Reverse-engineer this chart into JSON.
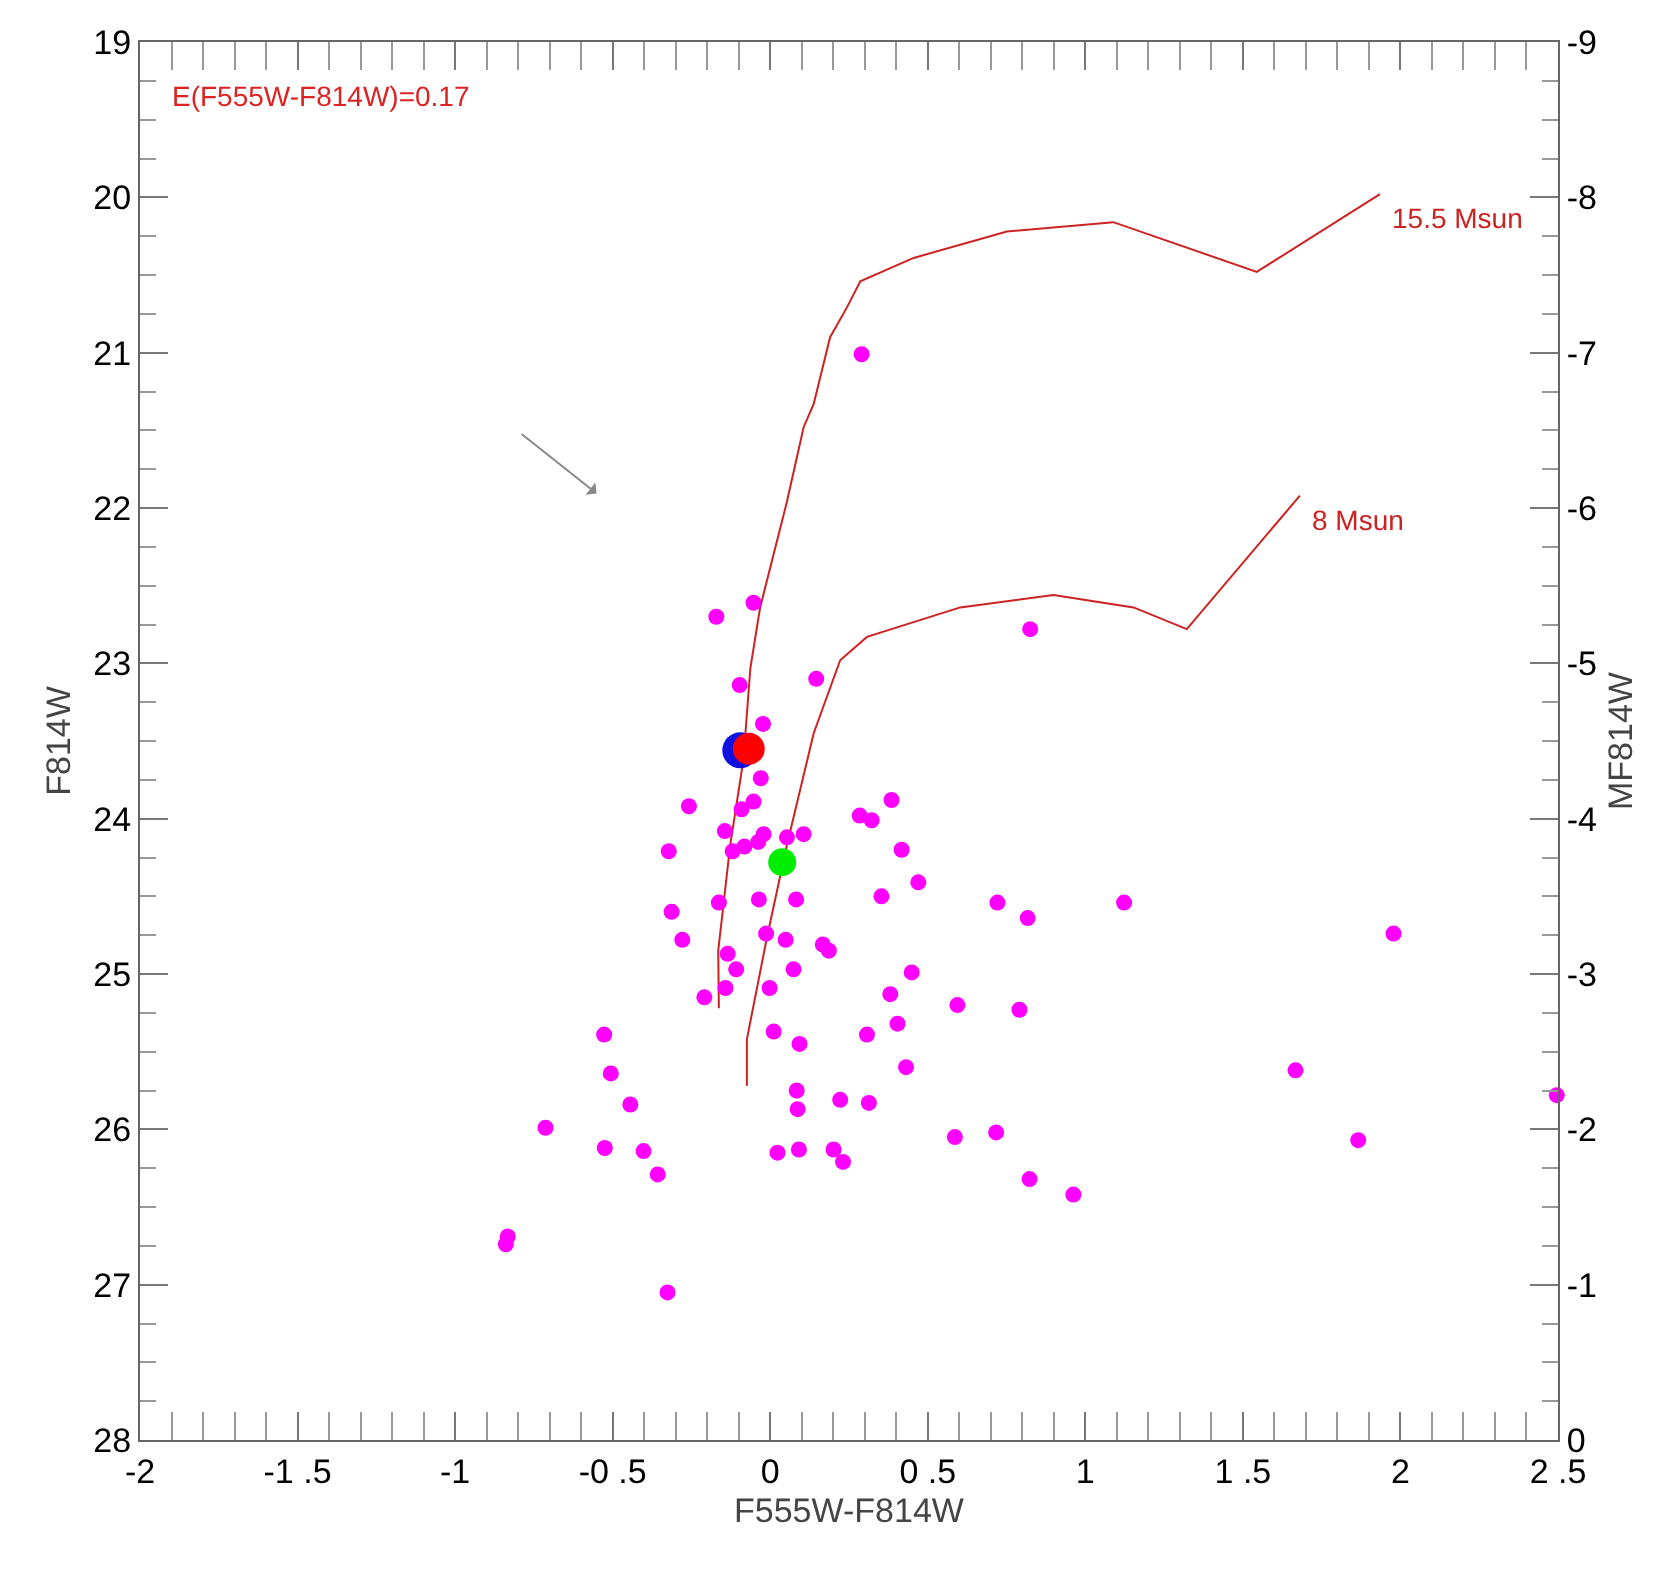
{
  "chart_data": {
    "type": "scatter",
    "xlabel": "F555W-F814W",
    "ylabel": "F814W",
    "y2label": "MF814W",
    "annotations": [
      "E(F555W-F814W)=0.17"
    ],
    "xlim": [
      -2,
      2.5
    ],
    "xticks": [
      -2,
      {
        "value": -1.5,
        "label": "-1 .5"
      },
      -1,
      {
        "value": -0.5,
        "label": "-0 .5"
      },
      0,
      {
        "value": 0.5,
        "label": "0 .5"
      },
      1,
      {
        "value": 1.5,
        "label": "1 .5"
      },
      2,
      {
        "value": 2.5,
        "label": "2 .5"
      }
    ],
    "ylim": [
      28,
      19
    ],
    "yticks": [
      19,
      20,
      21,
      22,
      23,
      24,
      25,
      26,
      27,
      28
    ],
    "y2lim": [
      0,
      -9
    ],
    "y2ticks": [
      -9,
      -8,
      -7,
      -6,
      -5,
      -4,
      -3,
      -2,
      -1,
      0
    ],
    "grid": false,
    "legend": false,
    "marker": "circle",
    "series": [
      {
        "color": "#ff00ff",
        "x": [
          -0.053,
          -0.171,
          -0.097,
          0.146,
          -0.023,
          -0.03,
          -0.258,
          -0.053,
          -0.091,
          0.385,
          0.284,
          0.322,
          -0.144,
          -0.021,
          -0.038,
          -0.082,
          -0.119,
          0.053,
          0.106,
          -0.322,
          0.417,
          0.47,
          0.353,
          -0.036,
          0.082,
          -0.163,
          -0.313,
          -0.013,
          -0.279,
          0.049,
          0.167,
          0.186,
          -0.135,
          -0.108,
          0.074,
          0.449,
          -0.002,
          -0.142,
          -0.209,
          0.381,
          0.594,
          0.404,
          0.011,
          0.307,
          0.093,
          -0.527,
          0.431,
          -0.506,
          0.084,
          0.222,
          0.313,
          -0.444,
          0.087,
          0.586,
          -0.713,
          -0.525,
          -0.402,
          0.023,
          0.091,
          0.201,
          0.231,
          -0.357,
          -0.833,
          -0.839,
          -0.326,
          0.721,
          0.817,
          1.123,
          1.978,
          0.791,
          1.667,
          2.496,
          0.717,
          1.866,
          0.823,
          0.962,
          0.29,
          0.825
        ],
        "values": [
          22.61,
          22.7,
          23.14,
          23.1,
          23.39,
          23.74,
          23.92,
          23.89,
          23.94,
          23.88,
          23.98,
          24.01,
          24.08,
          24.1,
          24.15,
          24.18,
          24.21,
          24.12,
          24.1,
          24.21,
          24.2,
          24.41,
          24.5,
          24.52,
          24.52,
          24.54,
          24.6,
          24.74,
          24.78,
          24.78,
          24.81,
          24.85,
          24.87,
          24.97,
          24.97,
          24.99,
          25.09,
          25.09,
          25.15,
          25.13,
          25.2,
          25.32,
          25.37,
          25.39,
          25.45,
          25.39,
          25.6,
          25.64,
          25.75,
          25.81,
          25.83,
          25.84,
          25.87,
          26.05,
          25.99,
          26.12,
          26.14,
          26.15,
          26.13,
          26.13,
          26.21,
          26.29,
          26.69,
          26.74,
          27.05,
          24.54,
          24.64,
          24.54,
          24.74,
          25.23,
          25.62,
          25.78,
          26.02,
          26.07,
          26.32,
          26.42,
          21.01,
          22.78
        ]
      },
      {
        "color": "#1010e0",
        "x": [
          -0.095
        ],
        "values": [
          23.56
        ]
      },
      {
        "color": "#ff0000",
        "x": [
          -0.068
        ],
        "values": [
          23.55
        ]
      },
      {
        "color": "#00ee00",
        "x": [
          0.038
        ],
        "values": [
          24.28
        ]
      },
      {
        "type": "line",
        "name": "15.5 Msun",
        "color": "#cc2222",
        "marker": "none",
        "line_style": "solid",
        "x": [
          -0.163,
          -0.165,
          -0.127,
          -0.085,
          -0.063,
          -0.032,
          0.053,
          0.106,
          0.138,
          0.19,
          0.243,
          0.286,
          0.455,
          0.751,
          1.089,
          1.544,
          1.935
        ],
        "values": [
          25.22,
          24.85,
          24.17,
          23.62,
          23.03,
          22.64,
          21.96,
          21.48,
          21.33,
          20.9,
          20.71,
          20.54,
          20.39,
          20.22,
          20.16,
          20.48,
          19.98
        ]
      },
      {
        "type": "line",
        "name": "8 Msun",
        "color": "#cc2222",
        "marker": "none",
        "line_style": "solid",
        "x": [
          -0.074,
          -0.074,
          -0.011,
          0.053,
          0.138,
          0.222,
          0.307,
          0.603,
          0.899,
          1.153,
          1.322,
          1.681
        ],
        "values": [
          25.72,
          25.42,
          24.77,
          24.17,
          23.45,
          22.98,
          22.83,
          22.64,
          22.56,
          22.64,
          22.78,
          21.92
        ]
      }
    ]
  }
}
